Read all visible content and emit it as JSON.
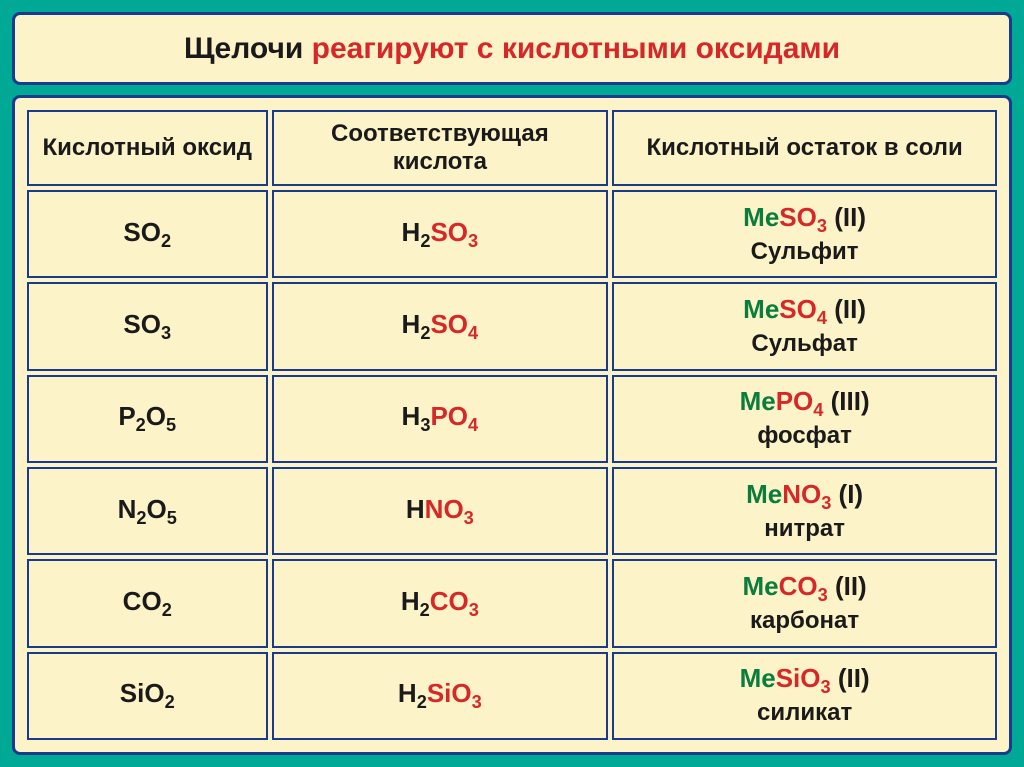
{
  "title": {
    "part1": "Щелочи ",
    "part2": "реагируют с кислотными оксидами"
  },
  "headers": {
    "col1": "Кислотный оксид",
    "col2": "Соответствующая кислота",
    "col3": "Кислотный остаток в соли"
  },
  "rows": [
    {
      "oxide": {
        "prefix": "S",
        "mid": "O",
        "sub": "2"
      },
      "acid": {
        "h": "H",
        "hsub": "2",
        "anion": "SO",
        "asub": "3"
      },
      "salt": {
        "me": "Me",
        "anion": "SO",
        "asub": "3",
        "valence": " (II)",
        "name": "Сульфит"
      }
    },
    {
      "oxide": {
        "prefix": "S",
        "mid": "O",
        "sub": "3"
      },
      "acid": {
        "h": "H",
        "hsub": "2",
        "anion": "SO",
        "asub": "4"
      },
      "salt": {
        "me": "Me",
        "anion": "SO",
        "asub": "4",
        "valence": " (II)",
        "name": "Сульфат"
      }
    },
    {
      "oxide": {
        "prefix": "P",
        "psub": "2",
        "mid": "O",
        "sub": "5"
      },
      "acid": {
        "h": "H",
        "hsub": "3",
        "anion": "PO",
        "asub": "4"
      },
      "salt": {
        "me": "Me",
        "anion": "PO",
        "asub": "4",
        "valence": " (III)",
        "name": "фосфат"
      }
    },
    {
      "oxide": {
        "prefix": "N",
        "psub": "2",
        "mid": "O",
        "sub": "5"
      },
      "acid": {
        "h": "H",
        "hsub": "",
        "anion": "NO",
        "asub": "3"
      },
      "salt": {
        "me": "Me",
        "anion": "NO",
        "asub": "3",
        "valence": " (I)",
        "name": "нитрат"
      }
    },
    {
      "oxide": {
        "prefix": "C",
        "mid": "O",
        "sub": "2"
      },
      "acid": {
        "h": "H",
        "hsub": "2",
        "anion": "CO",
        "asub": "3"
      },
      "salt": {
        "me": "Me",
        "anion": "CO",
        "asub": "3",
        "valence": " (II)",
        "name": "карбонат"
      }
    },
    {
      "oxide": {
        "prefix": "Si",
        "mid": "O",
        "sub": "2"
      },
      "acid": {
        "h": "H",
        "hsub": "2",
        "anion": "SiO",
        "asub": "3"
      },
      "salt": {
        "me": "Me",
        "anion": "SiO",
        "asub": "3",
        "valence": " (II)",
        "name": "силикат"
      }
    }
  ],
  "colors": {
    "background": "#00a896",
    "cell_bg": "#fdf3c9",
    "border": "#1a3a8c",
    "text_black": "#1a1a1a",
    "text_red": "#d62828",
    "text_green": "#0a7d3c",
    "text_blue": "#1a3a8c"
  }
}
